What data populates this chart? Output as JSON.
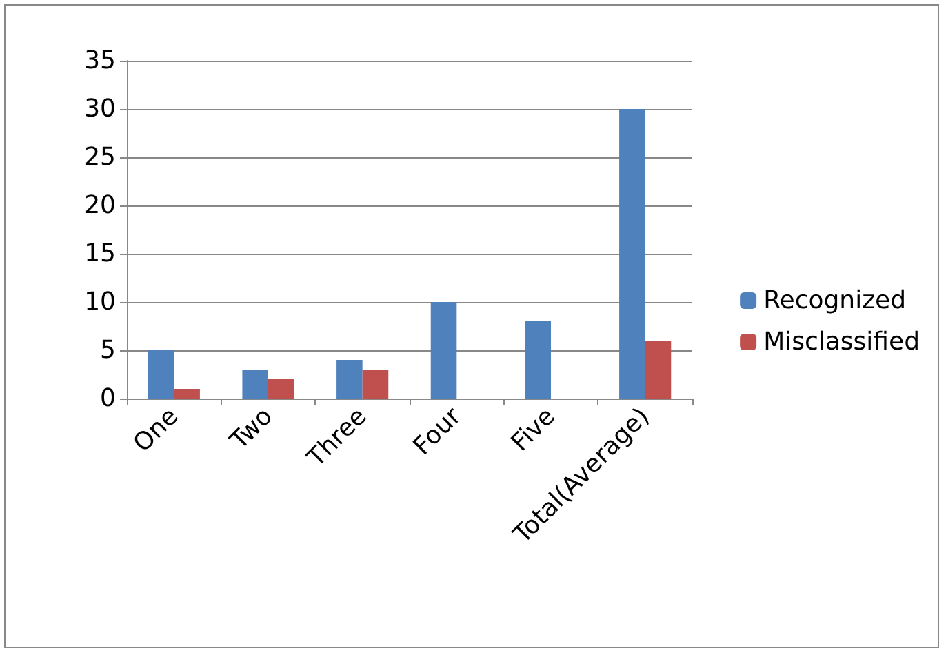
{
  "chart_data": {
    "type": "bar",
    "categories": [
      "One",
      "Two",
      "Three",
      "Four",
      "Five",
      "Total(Average)"
    ],
    "series": [
      {
        "name": "Recognized",
        "color": "#4f81bd",
        "values": [
          5,
          3,
          4,
          10,
          8,
          30
        ]
      },
      {
        "name": "Misclassified",
        "color": "#c0504d",
        "values": [
          1,
          2,
          3,
          0,
          0,
          6
        ]
      }
    ],
    "ylim": [
      0,
      35
    ],
    "yticks": [
      0,
      5,
      10,
      15,
      20,
      25,
      30,
      35
    ],
    "grid": "y",
    "legend": "right"
  }
}
